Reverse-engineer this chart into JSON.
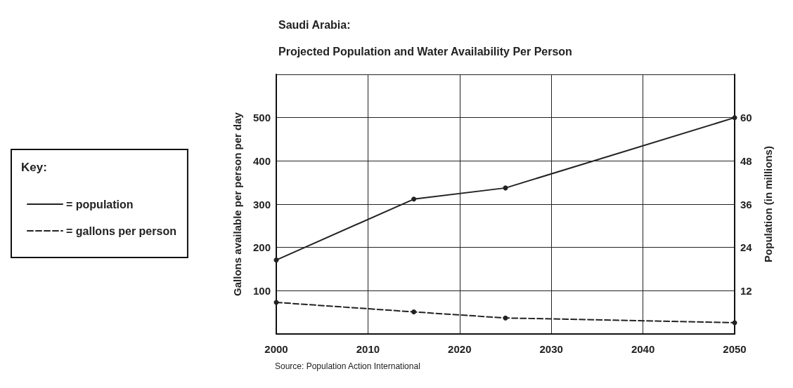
{
  "chart_data": {
    "type": "line",
    "title": "Saudi Arabia:",
    "subtitle": "Projected Population and Water Availability Per Person",
    "ylabel": "Gallons available per person per day",
    "y2label": "Population (in millions)",
    "legend_title": "Key:",
    "legend": "left",
    "annotations": [
      "Source: Population Action International"
    ],
    "x": [
      2000,
      2015,
      2025,
      2050
    ],
    "series": [
      {
        "name": "= population",
        "color": "#222222",
        "axis": "y2",
        "line_style": "solid",
        "values": [
          20.5,
          37.4,
          40.5,
          60
        ]
      },
      {
        "name": "= gallons per person",
        "color": "#222222",
        "line_style": "dashed",
        "values": [
          73,
          51,
          37,
          26
        ]
      }
    ],
    "xlim": [
      2000,
      2050
    ],
    "xticks": [
      2000,
      2010,
      2020,
      2030,
      2040,
      2050
    ],
    "ylim": [
      0,
      600
    ],
    "yticks": [
      100,
      200,
      300,
      400,
      500
    ],
    "y2lim": [
      0,
      72
    ],
    "y2ticks": [
      12,
      24,
      36,
      48,
      60
    ],
    "grid": true,
    "marker": "circle"
  }
}
